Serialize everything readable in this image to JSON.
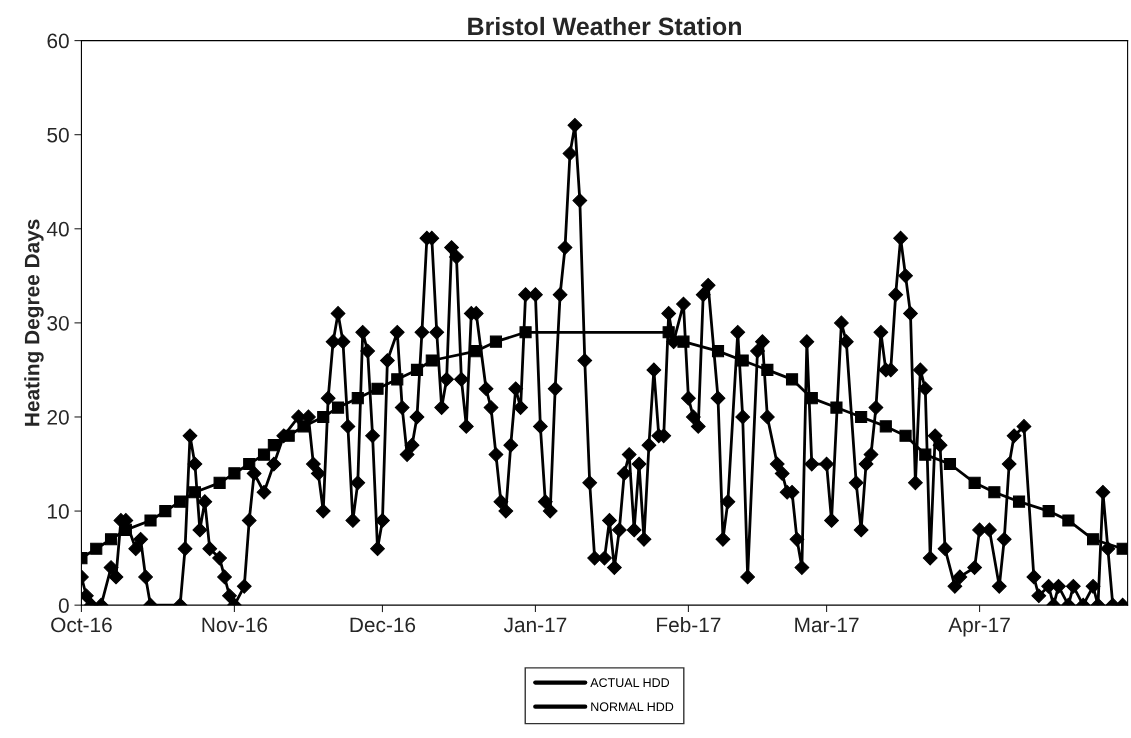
{
  "chart_data": {
    "type": "line",
    "title": "Bristol Weather Station",
    "ylabel": "Heating Degree Days",
    "xlim": [
      "2016-10-01",
      "2017-05-01"
    ],
    "xticks": [
      {
        "value": "2016-10-01",
        "label": "Oct-16"
      },
      {
        "value": "2016-11-01",
        "label": "Nov-16"
      },
      {
        "value": "2016-12-01",
        "label": "Dec-16"
      },
      {
        "value": "2017-01-01",
        "label": "Jan-17"
      },
      {
        "value": "2017-02-01",
        "label": "Feb-17"
      },
      {
        "value": "2017-03-01",
        "label": "Mar-17"
      },
      {
        "value": "2017-04-01",
        "label": "Apr-17"
      }
    ],
    "ylim": [
      0,
      60
    ],
    "yticks": [
      0,
      10,
      20,
      30,
      40,
      50,
      60
    ],
    "grid": false,
    "legend": "bottom",
    "line_style": "solid",
    "series": [
      {
        "name": "ACTUAL HDD",
        "color": "#000000",
        "marker": "diamond",
        "x": [
          "2016-10-01",
          "2016-10-02",
          "2016-10-03",
          "2016-10-05",
          "2016-10-07",
          "2016-10-08",
          "2016-10-09",
          "2016-10-10",
          "2016-10-12",
          "2016-10-13",
          "2016-10-14",
          "2016-10-15",
          "2016-10-21",
          "2016-10-22",
          "2016-10-23",
          "2016-10-24",
          "2016-10-25",
          "2016-10-26",
          "2016-10-27",
          "2016-10-29",
          "2016-10-30",
          "2016-10-31",
          "2016-11-01",
          "2016-11-03",
          "2016-11-04",
          "2016-11-05",
          "2016-11-07",
          "2016-11-09",
          "2016-11-11",
          "2016-11-14",
          "2016-11-16",
          "2016-11-17",
          "2016-11-18",
          "2016-11-19",
          "2016-11-20",
          "2016-11-21",
          "2016-11-22",
          "2016-11-23",
          "2016-11-24",
          "2016-11-25",
          "2016-11-26",
          "2016-11-27",
          "2016-11-28",
          "2016-11-29",
          "2016-11-30",
          "2016-12-01",
          "2016-12-02",
          "2016-12-04",
          "2016-12-05",
          "2016-12-06",
          "2016-12-07",
          "2016-12-08",
          "2016-12-09",
          "2016-12-10",
          "2016-12-11",
          "2016-12-12",
          "2016-12-13",
          "2016-12-14",
          "2016-12-15",
          "2016-12-16",
          "2016-12-17",
          "2016-12-18",
          "2016-12-19",
          "2016-12-20",
          "2016-12-22",
          "2016-12-23",
          "2016-12-24",
          "2016-12-25",
          "2016-12-26",
          "2016-12-27",
          "2016-12-28",
          "2016-12-29",
          "2016-12-30",
          "2017-01-01",
          "2017-01-02",
          "2017-01-03",
          "2017-01-04",
          "2017-01-05",
          "2017-01-06",
          "2017-01-07",
          "2017-01-08",
          "2017-01-09",
          "2017-01-10",
          "2017-01-11",
          "2017-01-12",
          "2017-01-13",
          "2017-01-15",
          "2017-01-16",
          "2017-01-17",
          "2017-01-18",
          "2017-01-19",
          "2017-01-20",
          "2017-01-21",
          "2017-01-22",
          "2017-01-23",
          "2017-01-24",
          "2017-01-25",
          "2017-01-26",
          "2017-01-27",
          "2017-01-28",
          "2017-01-29",
          "2017-01-31",
          "2017-02-01",
          "2017-02-02",
          "2017-02-03",
          "2017-02-04",
          "2017-02-05",
          "2017-02-07",
          "2017-02-08",
          "2017-02-09",
          "2017-02-11",
          "2017-02-12",
          "2017-02-13",
          "2017-02-15",
          "2017-02-16",
          "2017-02-17",
          "2017-02-19",
          "2017-02-20",
          "2017-02-21",
          "2017-02-22",
          "2017-02-23",
          "2017-02-24",
          "2017-02-25",
          "2017-02-26",
          "2017-03-01",
          "2017-03-02",
          "2017-03-04",
          "2017-03-05",
          "2017-03-07",
          "2017-03-08",
          "2017-03-09",
          "2017-03-10",
          "2017-03-11",
          "2017-03-12",
          "2017-03-13",
          "2017-03-14",
          "2017-03-15",
          "2017-03-16",
          "2017-03-17",
          "2017-03-18",
          "2017-03-19",
          "2017-03-20",
          "2017-03-21",
          "2017-03-22",
          "2017-03-23",
          "2017-03-24",
          "2017-03-25",
          "2017-03-27",
          "2017-03-28",
          "2017-03-31",
          "2017-04-01",
          "2017-04-03",
          "2017-04-05",
          "2017-04-06",
          "2017-04-07",
          "2017-04-08",
          "2017-04-10",
          "2017-04-12",
          "2017-04-13",
          "2017-04-15",
          "2017-04-16",
          "2017-04-17",
          "2017-04-19",
          "2017-04-20",
          "2017-04-22",
          "2017-04-24",
          "2017-04-25",
          "2017-04-26",
          "2017-04-27",
          "2017-04-28",
          "2017-04-30"
        ],
        "values": [
          3,
          1,
          0,
          0,
          4,
          3,
          9,
          9,
          6,
          7,
          3,
          0,
          0,
          6,
          18,
          15,
          8,
          11,
          6,
          5,
          3,
          1,
          0,
          2,
          9,
          14,
          12,
          15,
          18,
          20,
          20,
          15,
          14,
          10,
          22,
          28,
          31,
          28,
          19,
          9,
          13,
          29,
          27,
          18,
          6,
          9,
          26,
          29,
          21,
          16,
          17,
          20,
          29,
          39,
          39,
          29,
          21,
          24,
          38,
          37,
          24,
          19,
          31,
          31,
          23,
          21,
          16,
          11,
          10,
          17,
          23,
          21,
          33,
          33,
          19,
          11,
          10,
          23,
          33,
          38,
          48,
          51,
          43,
          26,
          13,
          5,
          5,
          9,
          4,
          8,
          14,
          16,
          8,
          15,
          7,
          17,
          25,
          18,
          18,
          31,
          28,
          32,
          22,
          20,
          19,
          33,
          34,
          22,
          7,
          11,
          29,
          20,
          3,
          27,
          28,
          20,
          15,
          14,
          12,
          12,
          7,
          4,
          28,
          15,
          15,
          9,
          30,
          28,
          13,
          8,
          15,
          16,
          21,
          29,
          25,
          25,
          33,
          39,
          35,
          31,
          13,
          25,
          23,
          5,
          18,
          17,
          6,
          2,
          3,
          4,
          8,
          8,
          2,
          7,
          15,
          18,
          19,
          3,
          1,
          2,
          0,
          2,
          0,
          2,
          0,
          2,
          0,
          12,
          6,
          0,
          0
        ]
      },
      {
        "name": "NORMAL HDD",
        "color": "#000000",
        "marker": "square",
        "x": [
          "2016-10-01",
          "2016-10-04",
          "2016-10-07",
          "2016-10-10",
          "2016-10-15",
          "2016-10-18",
          "2016-10-21",
          "2016-10-24",
          "2016-10-29",
          "2016-11-01",
          "2016-11-04",
          "2016-11-07",
          "2016-11-09",
          "2016-11-12",
          "2016-11-15",
          "2016-11-19",
          "2016-11-22",
          "2016-11-26",
          "2016-11-30",
          "2016-12-04",
          "2016-12-08",
          "2016-12-11",
          "2016-12-20",
          "2016-12-24",
          "2016-12-30",
          "2017-01-28",
          "2017-01-31",
          "2017-02-07",
          "2017-02-12",
          "2017-02-17",
          "2017-02-22",
          "2017-02-26",
          "2017-03-03",
          "2017-03-08",
          "2017-03-13",
          "2017-03-17",
          "2017-03-21",
          "2017-03-26",
          "2017-03-31",
          "2017-04-04",
          "2017-04-09",
          "2017-04-15",
          "2017-04-19",
          "2017-04-24",
          "2017-04-30"
        ],
        "values": [
          5,
          6,
          7,
          8,
          9,
          10,
          11,
          12,
          13,
          14,
          15,
          16,
          17,
          18,
          19,
          20,
          21,
          22,
          23,
          24,
          25,
          26,
          27,
          28,
          29,
          29,
          28,
          27,
          26,
          25,
          24,
          22,
          21,
          20,
          19,
          18,
          16,
          15,
          13,
          12,
          11,
          10,
          9,
          7,
          6
        ]
      }
    ]
  }
}
